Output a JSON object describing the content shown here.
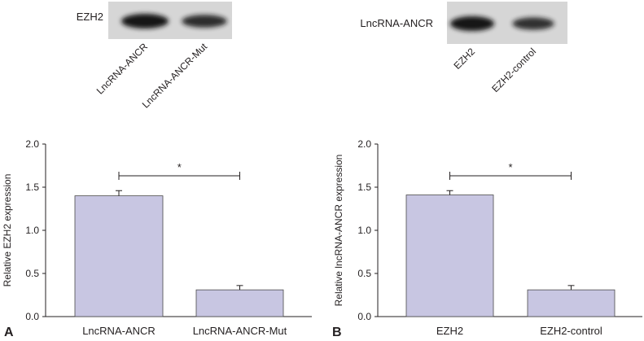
{
  "colors": {
    "bar": "#c8c6e2",
    "bar_stroke": "#4a4a4a",
    "blot_bg": "#d6d6d6",
    "band": "#141414"
  },
  "panels": [
    {
      "panel_label": "A",
      "blot": {
        "band_label": "EZH2",
        "lanes": [
          "LncRNA-ANCR",
          "LncRNA-ANCR-Mut"
        ],
        "intensity": [
          1.0,
          0.7
        ]
      },
      "significance": "*"
    },
    {
      "panel_label": "B",
      "blot": {
        "band_label": "LncRNA-ANCR",
        "lanes": [
          "EZH2",
          "EZH2-control"
        ],
        "intensity": [
          1.0,
          0.65
        ]
      },
      "significance": "*"
    }
  ],
  "chart_data": [
    {
      "type": "bar",
      "categories": [
        "LncRNA-ANCR",
        "LncRNA-ANCR-Mut"
      ],
      "values": [
        1.4,
        0.31
      ],
      "errors": [
        0.06,
        0.05
      ],
      "xlabel": "",
      "ylabel": "Relative EZH2 expression",
      "ylim": [
        0,
        2.0
      ],
      "yticks": [
        "0.0",
        "0.5",
        "1.0",
        "1.5",
        "2.0"
      ],
      "grid": false
    },
    {
      "type": "bar",
      "categories": [
        "EZH2",
        "EZH2-control"
      ],
      "values": [
        1.41,
        0.31
      ],
      "errors": [
        0.05,
        0.05
      ],
      "xlabel": "",
      "ylabel": "Relative lncRNA-ANCR expression",
      "ylim": [
        0,
        2.0
      ],
      "yticks": [
        "0.0",
        "0.5",
        "1.0",
        "1.5",
        "2.0"
      ],
      "grid": false
    }
  ]
}
